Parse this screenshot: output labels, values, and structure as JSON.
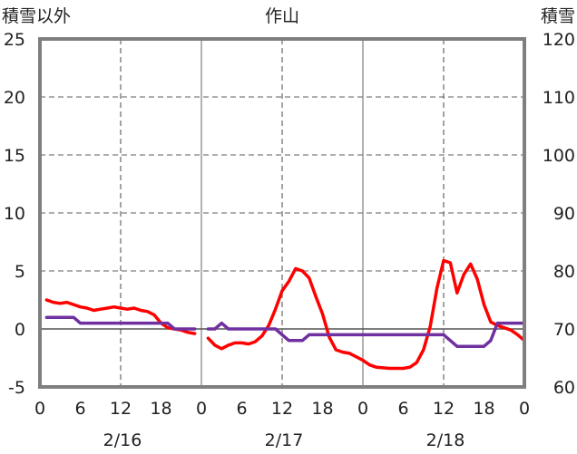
{
  "chart_data": {
    "type": "line",
    "title": "作山",
    "left_axis_label": "積雪以外",
    "right_axis_label": "積雪",
    "y_left": {
      "min": -5,
      "max": 25,
      "ticks": [
        25,
        20,
        15,
        10,
        5,
        0,
        -5
      ]
    },
    "y_right": {
      "min": 60,
      "max": 120,
      "ticks": [
        120,
        110,
        100,
        90,
        80,
        70,
        60
      ]
    },
    "x": {
      "min": 0,
      "max": 72,
      "tick_step": 6,
      "tick_labels": [
        "0",
        "6",
        "12",
        "18",
        "0",
        "6",
        "12",
        "18",
        "0",
        "6",
        "12",
        "18",
        "0"
      ],
      "date_labels": [
        "2/16",
        "2/17",
        "2/18"
      ]
    },
    "grid": true,
    "colors": {
      "red": "#ff0000",
      "purple": "#7030a0",
      "zero_line": "#555555",
      "frame": "#7f7f7f"
    },
    "series": [
      {
        "axis": "left",
        "color": "#ff0000",
        "points": [
          [
            1,
            2.5
          ],
          [
            2,
            2.3
          ],
          [
            3,
            2.2
          ],
          [
            4,
            2.3
          ],
          [
            5,
            2.1
          ],
          [
            6,
            1.9
          ],
          [
            7,
            1.8
          ],
          [
            8,
            1.6
          ],
          [
            9,
            1.7
          ],
          [
            10,
            1.8
          ],
          [
            11,
            1.9
          ],
          [
            12,
            1.8
          ],
          [
            13,
            1.7
          ],
          [
            14,
            1.8
          ],
          [
            15,
            1.6
          ],
          [
            16,
            1.5
          ],
          [
            17,
            1.2
          ],
          [
            18,
            0.5
          ],
          [
            19,
            0.1
          ],
          [
            20,
            0.0
          ],
          [
            21,
            -0.1
          ],
          [
            22,
            -0.3
          ],
          [
            23,
            -0.4
          ],
          [
            25,
            -0.8
          ],
          [
            26,
            -1.4
          ],
          [
            27,
            -1.7
          ],
          [
            28,
            -1.4
          ],
          [
            29,
            -1.2
          ],
          [
            30,
            -1.2
          ],
          [
            31,
            -1.3
          ],
          [
            32,
            -1.1
          ],
          [
            33,
            -0.6
          ],
          [
            34,
            0.3
          ],
          [
            35,
            1.7
          ],
          [
            36,
            3.3
          ],
          [
            37,
            4.1
          ],
          [
            38,
            5.2
          ],
          [
            39,
            5.0
          ],
          [
            40,
            4.4
          ],
          [
            41,
            2.8
          ],
          [
            42,
            1.3
          ],
          [
            43,
            -0.7
          ],
          [
            44,
            -1.8
          ],
          [
            45,
            -2.0
          ],
          [
            46,
            -2.1
          ],
          [
            47,
            -2.4
          ],
          [
            48,
            -2.7
          ],
          [
            49,
            -3.1
          ],
          [
            50,
            -3.3
          ],
          [
            51,
            -3.35
          ],
          [
            52,
            -3.4
          ],
          [
            53,
            -3.4
          ],
          [
            54,
            -3.4
          ],
          [
            55,
            -3.3
          ],
          [
            56,
            -2.9
          ],
          [
            57,
            -1.8
          ],
          [
            58,
            0.2
          ],
          [
            59,
            3.5
          ],
          [
            60,
            5.9
          ],
          [
            61,
            5.7
          ],
          [
            62,
            3.1
          ],
          [
            63,
            4.7
          ],
          [
            64,
            5.6
          ],
          [
            65,
            4.3
          ],
          [
            66,
            2.1
          ],
          [
            67,
            0.6
          ],
          [
            68,
            0.3
          ],
          [
            69,
            0.1
          ],
          [
            70,
            -0.1
          ],
          [
            71,
            -0.5
          ],
          [
            72,
            -1.0
          ]
        ]
      },
      {
        "axis": "left",
        "color": "#7030a0",
        "points": [
          [
            1,
            1.0
          ],
          [
            2,
            1.0
          ],
          [
            3,
            1.0
          ],
          [
            4,
            1.0
          ],
          [
            5,
            1.0
          ],
          [
            6,
            0.5
          ],
          [
            7,
            0.5
          ],
          [
            8,
            0.5
          ],
          [
            9,
            0.5
          ],
          [
            10,
            0.5
          ],
          [
            11,
            0.5
          ],
          [
            12,
            0.5
          ],
          [
            13,
            0.5
          ],
          [
            14,
            0.5
          ],
          [
            15,
            0.5
          ],
          [
            16,
            0.5
          ],
          [
            17,
            0.5
          ],
          [
            18,
            0.5
          ],
          [
            19,
            0.5
          ],
          [
            20,
            0.0
          ],
          [
            21,
            0.0
          ],
          [
            22,
            0.0
          ],
          [
            23,
            0.0
          ],
          [
            25,
            0.0
          ],
          [
            26,
            0.0
          ],
          [
            27,
            0.5
          ],
          [
            28,
            0.0
          ],
          [
            29,
            0.0
          ],
          [
            30,
            0.0
          ],
          [
            31,
            0.0
          ],
          [
            32,
            0.0
          ],
          [
            33,
            0.0
          ],
          [
            34,
            0.0
          ],
          [
            35,
            0.0
          ],
          [
            36,
            -0.5
          ],
          [
            37,
            -1.0
          ],
          [
            38,
            -1.0
          ],
          [
            39,
            -1.0
          ],
          [
            40,
            -0.5
          ],
          [
            41,
            -0.5
          ],
          [
            42,
            -0.5
          ],
          [
            43,
            -0.5
          ],
          [
            44,
            -0.5
          ],
          [
            45,
            -0.5
          ],
          [
            46,
            -0.5
          ],
          [
            47,
            -0.5
          ],
          [
            48,
            -0.5
          ],
          [
            49,
            -0.5
          ],
          [
            50,
            -0.5
          ],
          [
            51,
            -0.5
          ],
          [
            52,
            -0.5
          ],
          [
            53,
            -0.5
          ],
          [
            54,
            -0.5
          ],
          [
            55,
            -0.5
          ],
          [
            56,
            -0.5
          ],
          [
            57,
            -0.5
          ],
          [
            58,
            -0.5
          ],
          [
            59,
            -0.5
          ],
          [
            60,
            -0.5
          ],
          [
            61,
            -1.0
          ],
          [
            62,
            -1.5
          ],
          [
            63,
            -1.5
          ],
          [
            64,
            -1.5
          ],
          [
            65,
            -1.5
          ],
          [
            66,
            -1.5
          ],
          [
            67,
            -1.0
          ],
          [
            68,
            0.5
          ],
          [
            69,
            0.5
          ],
          [
            70,
            0.5
          ],
          [
            71,
            0.5
          ],
          [
            72,
            0.5
          ]
        ]
      }
    ]
  }
}
